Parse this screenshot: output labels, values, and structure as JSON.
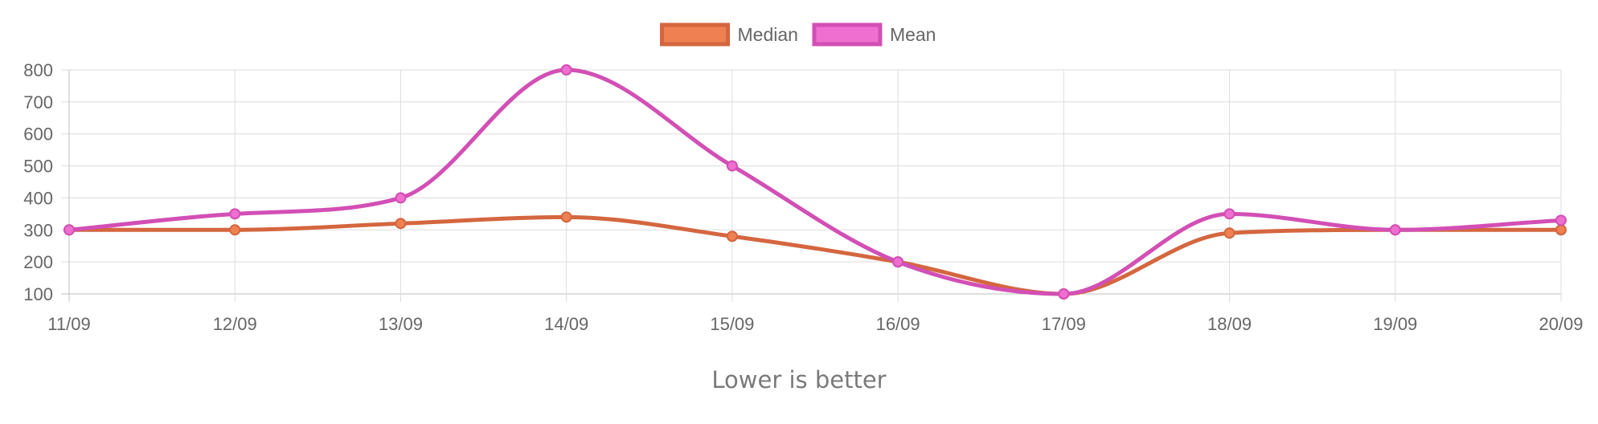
{
  "caption": "Lower is better",
  "chart_data": {
    "type": "line",
    "categories": [
      "11/09",
      "12/09",
      "13/09",
      "14/09",
      "15/09",
      "16/09",
      "17/09",
      "18/09",
      "19/09",
      "20/09"
    ],
    "series": [
      {
        "name": "Median",
        "values": [
          300,
          300,
          320,
          340,
          280,
          200,
          100,
          290,
          300,
          300
        ],
        "line_color": "#d4663f",
        "fill_color": "#ee8052"
      },
      {
        "name": "Mean",
        "values": [
          300,
          350,
          400,
          800,
          500,
          200,
          100,
          350,
          300,
          330
        ],
        "line_color": "#d24fb5",
        "fill_color": "#ee6fcf"
      }
    ],
    "y_ticks": [
      100,
      200,
      300,
      400,
      500,
      600,
      700,
      800
    ],
    "ylim": [
      100,
      800
    ],
    "grid": true,
    "legend_position": "top-center",
    "grid_color": "#dddddd",
    "axis_color": "#bfbfbf"
  }
}
